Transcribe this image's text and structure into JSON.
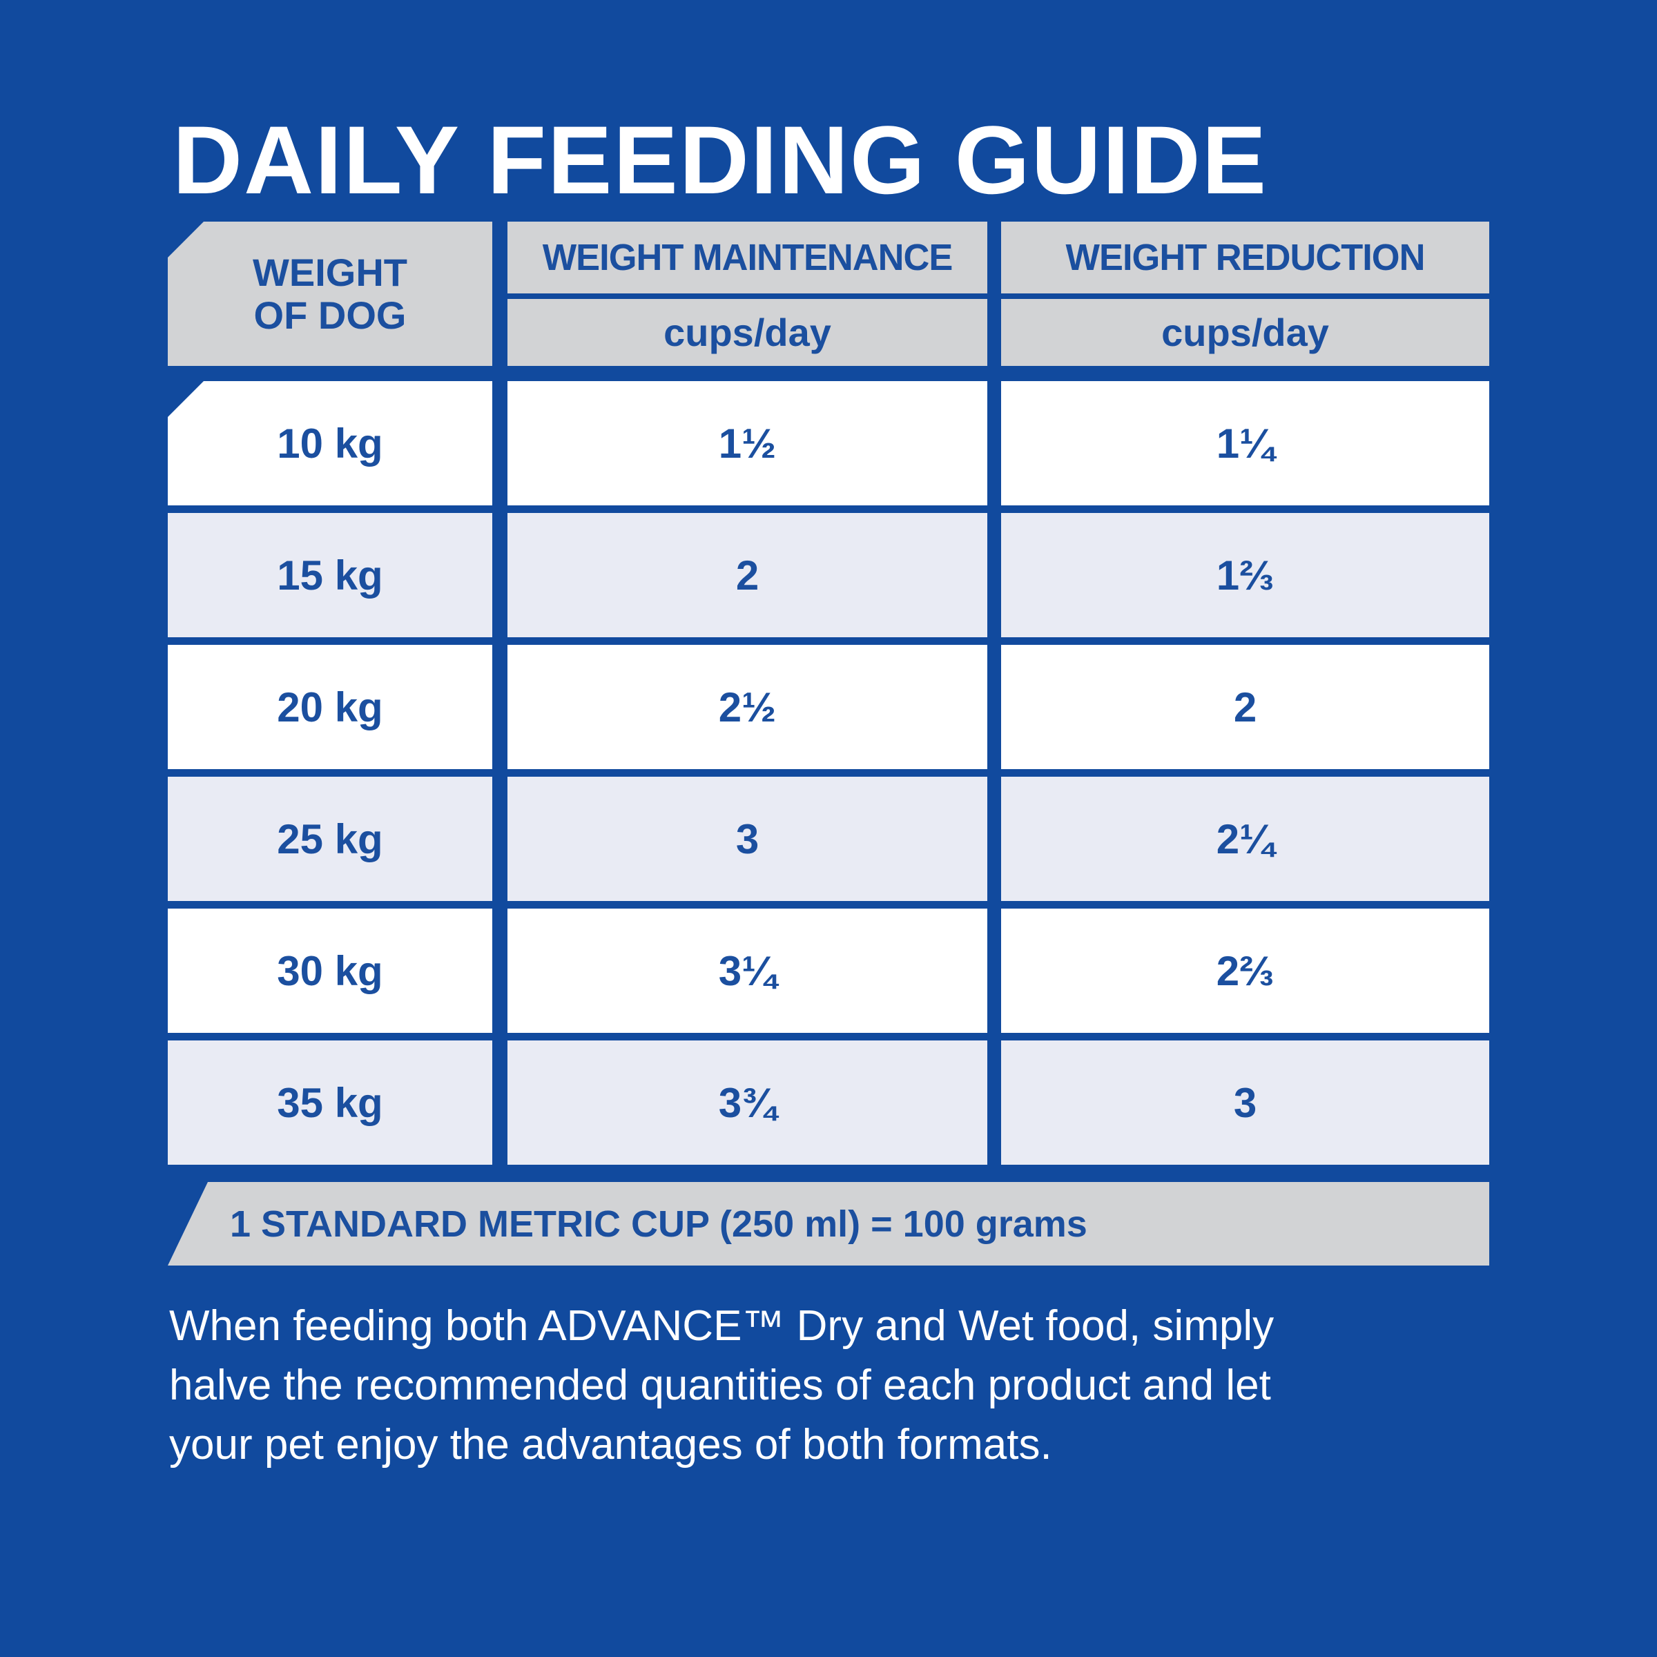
{
  "title": "DAILY FEEDING GUIDE",
  "table": {
    "col1_header_line1": "WEIGHT",
    "col1_header_line2": "OF DOG",
    "col2_header": "WEIGHT MAINTENANCE",
    "col3_header": "WEIGHT REDUCTION",
    "unit_label": "cups/day",
    "rows": [
      {
        "weight": "10 kg",
        "maintenance": "1½",
        "reduction": "1¼"
      },
      {
        "weight": "15 kg",
        "maintenance": "2",
        "reduction": "1⅔"
      },
      {
        "weight": "20 kg",
        "maintenance": "2½",
        "reduction": "2"
      },
      {
        "weight": "25 kg",
        "maintenance": "3",
        "reduction": "2¼"
      },
      {
        "weight": "30 kg",
        "maintenance": "3¼",
        "reduction": "2⅔"
      },
      {
        "weight": "35 kg",
        "maintenance": "3¾",
        "reduction": "3"
      }
    ]
  },
  "footnote": "1 STANDARD METRIC CUP (250 ml) = 100 grams",
  "note_lines": [
    "When feeding both ADVANCE™ Dry and Wet food, simply",
    "halve the recommended quantities of each product and let",
    "your pet enjoy the advantages of both formats."
  ],
  "colors": {
    "background_blue": "#114A9E",
    "text_blue": "#1B4F9F",
    "header_gray": "#D2D3D5",
    "row_alt_light_blue": "#E9EBF4",
    "row_white": "#FFFFFF"
  }
}
